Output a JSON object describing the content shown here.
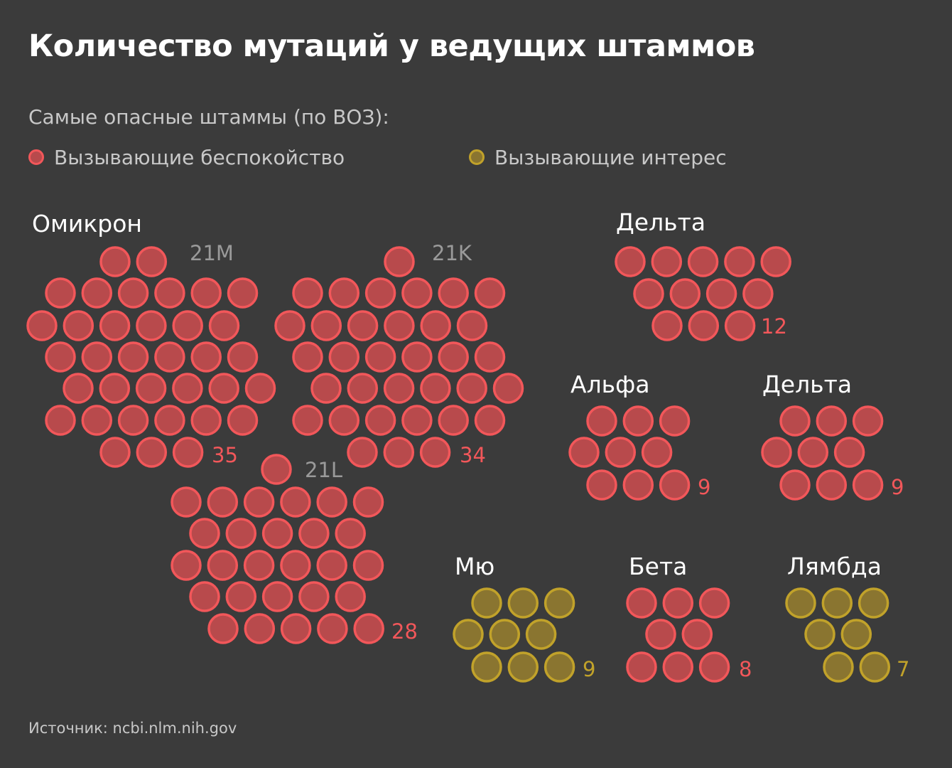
{
  "header": {
    "title": "Количество мутаций у ведущих штаммов",
    "subtitle": "Самые опасные штаммы (по ВОЗ):"
  },
  "legend": {
    "concern": {
      "label": "Вызывающие беспокойство",
      "color": "#f2575a"
    },
    "interest": {
      "label": "Вызывающие интерес",
      "color": "#c1a22a"
    }
  },
  "source": "Источник: ncbi.nlm.nih.gov",
  "chart_data": {
    "type": "unit-bubble",
    "title": "Количество мутаций у ведущих штаммов",
    "groups": [
      {
        "name": "Омикрон",
        "category": "concern",
        "subvariants": [
          {
            "name": "21M",
            "value": 35
          },
          {
            "name": "21K",
            "value": 34
          },
          {
            "name": "21L",
            "value": 28
          }
        ]
      },
      {
        "name": "Дельта",
        "category": "concern",
        "value": 12
      },
      {
        "name": "Альфа",
        "category": "concern",
        "value": 9
      },
      {
        "name": "Дельта",
        "category": "concern",
        "value": 9
      },
      {
        "name": "Мю",
        "category": "interest",
        "value": 9
      },
      {
        "name": "Бета",
        "category": "concern",
        "value": 8
      },
      {
        "name": "Лямбда",
        "category": "interest",
        "value": 7
      }
    ],
    "colors": {
      "concern_fill": "#b84a4c",
      "concern_stroke": "#f2575a",
      "interest_fill": "#8a7530",
      "interest_stroke": "#c1a22a",
      "sublabel": "#9a9a9a"
    }
  }
}
